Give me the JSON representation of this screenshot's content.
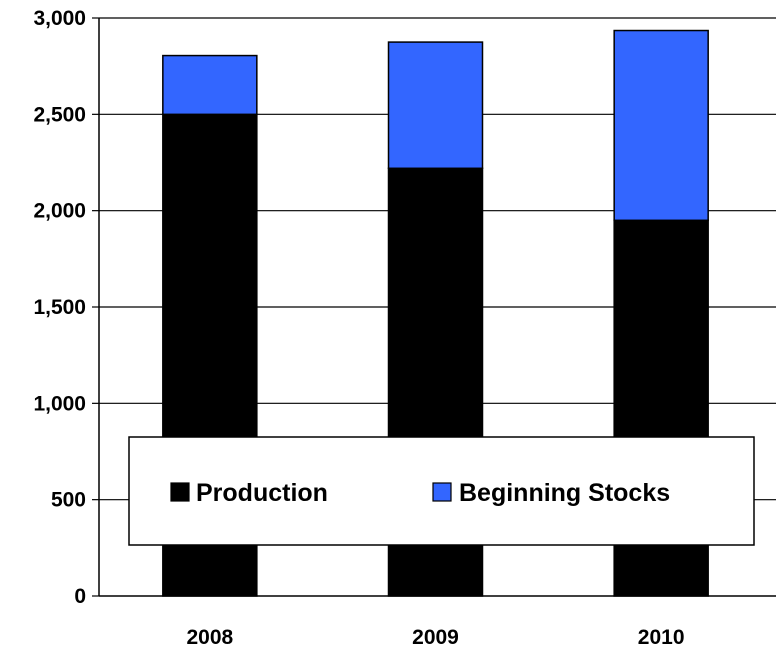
{
  "chart_data": {
    "type": "bar",
    "stacked": true,
    "categories": [
      "2008",
      "2009",
      "2010"
    ],
    "series": [
      {
        "name": "Production",
        "values": [
          2500,
          2220,
          1950
        ],
        "color": "#000000"
      },
      {
        "name": "Beginning Stocks",
        "values": [
          305,
          655,
          985
        ],
        "color": "#3366FF"
      }
    ],
    "ylim": [
      0,
      3000
    ],
    "yticks": [
      0,
      500,
      1000,
      1500,
      2000,
      2500,
      3000
    ],
    "ytick_labels": [
      "0",
      "500",
      "1,000",
      "1,500",
      "2,000",
      "2,500",
      "3,000"
    ],
    "grid": true,
    "legend_position": "bottom-center",
    "title": "",
    "xlabel": "",
    "ylabel": ""
  }
}
